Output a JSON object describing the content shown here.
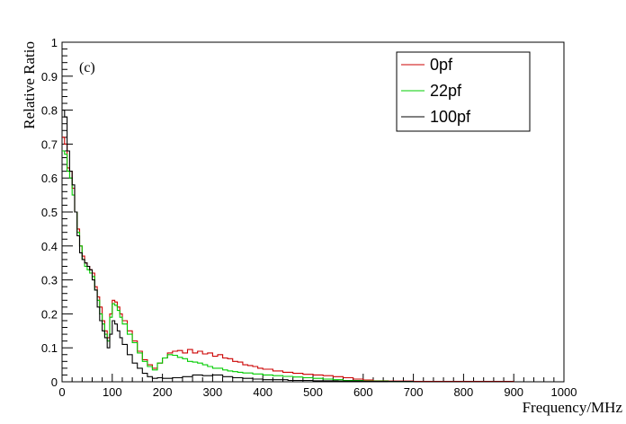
{
  "chart_data": {
    "type": "line",
    "panel_label": "(c)",
    "xlabel": "Frequency/MHz",
    "ylabel": "Relative Ratio",
    "xlim": [
      0,
      1000
    ],
    "ylim": [
      0,
      1
    ],
    "x_ticks": [
      0,
      100,
      200,
      300,
      400,
      500,
      600,
      700,
      800,
      900,
      1000
    ],
    "x_tick_labels": [
      "0",
      "100",
      "200",
      "300",
      "400",
      "500",
      "600",
      "700",
      "800",
      "900",
      "1000"
    ],
    "y_ticks": [
      0,
      0.1,
      0.2,
      0.3,
      0.4,
      0.5,
      0.6,
      0.7,
      0.8,
      0.9,
      1
    ],
    "y_tick_labels": [
      "0",
      "0.1",
      "0.2",
      "0.3",
      "0.4",
      "0.5",
      "0.6",
      "0.7",
      "0.8",
      "0.9",
      "1"
    ],
    "grid": false,
    "legend_position": "top-right",
    "series": [
      {
        "name": "0pf",
        "color": "#cc0000",
        "x": [
          0,
          5,
          10,
          15,
          20,
          25,
          30,
          35,
          40,
          45,
          50,
          55,
          60,
          65,
          70,
          75,
          80,
          85,
          90,
          95,
          100,
          105,
          110,
          115,
          120,
          130,
          140,
          150,
          160,
          170,
          180,
          190,
          200,
          210,
          220,
          230,
          240,
          250,
          260,
          270,
          280,
          290,
          300,
          310,
          320,
          330,
          340,
          350,
          360,
          370,
          380,
          390,
          400,
          420,
          440,
          460,
          480,
          500,
          520,
          540,
          560,
          580,
          600,
          620,
          650,
          700,
          800,
          900,
          1000
        ],
        "y": [
          0.72,
          0.7,
          0.63,
          0.62,
          0.57,
          0.5,
          0.45,
          0.4,
          0.37,
          0.35,
          0.34,
          0.33,
          0.32,
          0.28,
          0.25,
          0.22,
          0.18,
          0.15,
          0.13,
          0.2,
          0.24,
          0.235,
          0.22,
          0.2,
          0.18,
          0.15,
          0.12,
          0.09,
          0.065,
          0.05,
          0.04,
          0.055,
          0.07,
          0.085,
          0.09,
          0.092,
          0.085,
          0.095,
          0.085,
          0.09,
          0.082,
          0.085,
          0.075,
          0.08,
          0.07,
          0.068,
          0.06,
          0.058,
          0.05,
          0.048,
          0.045,
          0.04,
          0.037,
          0.032,
          0.028,
          0.025,
          0.022,
          0.02,
          0.018,
          0.015,
          0.012,
          0.008,
          0.005,
          0.003,
          0.002,
          0.001,
          0.001,
          0.0,
          0.0
        ]
      },
      {
        "name": "22pf",
        "color": "#00cc00",
        "x": [
          0,
          5,
          10,
          15,
          20,
          25,
          30,
          35,
          40,
          45,
          50,
          55,
          60,
          65,
          70,
          75,
          80,
          85,
          90,
          95,
          100,
          105,
          110,
          115,
          120,
          130,
          140,
          150,
          160,
          170,
          180,
          190,
          200,
          210,
          220,
          230,
          240,
          250,
          260,
          270,
          280,
          290,
          300,
          310,
          320,
          330,
          340,
          350,
          360,
          380,
          400,
          420,
          440,
          460,
          480,
          500,
          520,
          540,
          560,
          600,
          650,
          700,
          800,
          900,
          1000
        ],
        "y": [
          0.68,
          0.67,
          0.62,
          0.6,
          0.55,
          0.5,
          0.44,
          0.4,
          0.36,
          0.34,
          0.33,
          0.32,
          0.31,
          0.27,
          0.24,
          0.2,
          0.17,
          0.14,
          0.12,
          0.19,
          0.23,
          0.225,
          0.21,
          0.19,
          0.17,
          0.14,
          0.115,
          0.085,
          0.06,
          0.045,
          0.035,
          0.055,
          0.07,
          0.08,
          0.078,
          0.072,
          0.068,
          0.06,
          0.058,
          0.055,
          0.05,
          0.045,
          0.04,
          0.04,
          0.035,
          0.032,
          0.03,
          0.028,
          0.026,
          0.023,
          0.02,
          0.018,
          0.016,
          0.014,
          0.012,
          0.01,
          0.008,
          0.006,
          0.004,
          0.002,
          0.001,
          0.0,
          0.0,
          0.0,
          0.0
        ]
      },
      {
        "name": "100pf",
        "color": "#000000",
        "x": [
          0,
          5,
          10,
          15,
          20,
          25,
          30,
          35,
          40,
          45,
          50,
          55,
          60,
          65,
          70,
          75,
          80,
          85,
          90,
          95,
          100,
          105,
          110,
          115,
          120,
          130,
          140,
          150,
          160,
          170,
          180,
          190,
          200,
          220,
          240,
          260,
          280,
          300,
          320,
          340,
          360,
          380,
          400,
          450,
          500,
          550,
          600,
          700,
          800,
          900,
          1000
        ],
        "y": [
          0.8,
          0.78,
          0.68,
          0.62,
          0.58,
          0.5,
          0.43,
          0.38,
          0.36,
          0.35,
          0.34,
          0.33,
          0.3,
          0.27,
          0.22,
          0.18,
          0.15,
          0.13,
          0.1,
          0.14,
          0.18,
          0.17,
          0.15,
          0.13,
          0.11,
          0.08,
          0.055,
          0.04,
          0.025,
          0.015,
          0.01,
          0.012,
          0.01,
          0.012,
          0.015,
          0.02,
          0.018,
          0.02,
          0.015,
          0.012,
          0.01,
          0.008,
          0.006,
          0.004,
          0.003,
          0.002,
          0.001,
          0.0,
          0.0,
          0.0,
          0.0
        ]
      }
    ]
  }
}
